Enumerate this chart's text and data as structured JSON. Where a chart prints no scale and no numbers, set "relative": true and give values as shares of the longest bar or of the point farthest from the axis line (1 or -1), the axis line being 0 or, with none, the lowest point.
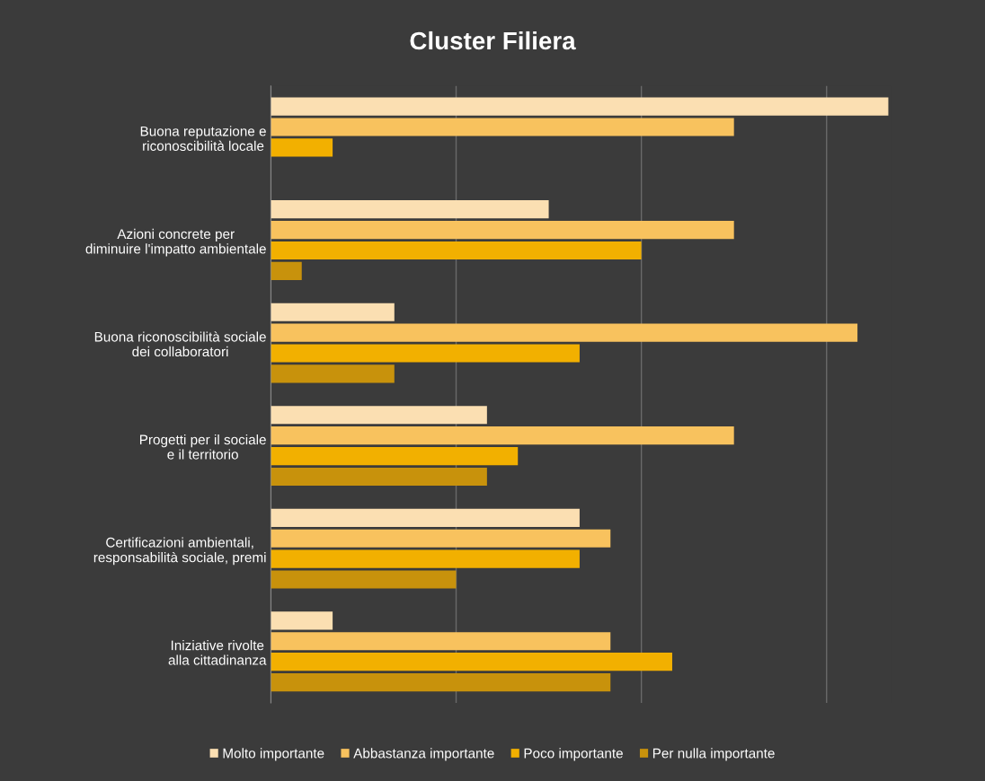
{
  "chart_data": {
    "type": "bar",
    "orientation": "horizontal",
    "relative": true,
    "title": "Cluster Filiera",
    "categories": [
      "Buona reputazione e\nriconoscibilità locale",
      "Azioni concrete per\ndiminuire l'impatto ambientale",
      "Buona riconoscibilità sociale\ndei collaboratori",
      "Progetti per il sociale\ne il territorio",
      "Certificazioni ambientali,\nresponsabilità sociale, premi",
      "Iniziative rivolte\nalla cittadinanza"
    ],
    "series": [
      {
        "name": "Molto importante",
        "color": "#fbdfb2",
        "values": [
          1.0,
          0.45,
          0.2,
          0.35,
          0.5,
          0.1
        ]
      },
      {
        "name": "Abbastanza importante",
        "color": "#f8c25e",
        "values": [
          0.75,
          0.75,
          0.95,
          0.75,
          0.55,
          0.55
        ]
      },
      {
        "name": "Poco importante",
        "color": "#f2b000",
        "values": [
          0.1,
          0.6,
          0.5,
          0.4,
          0.5,
          0.65
        ]
      },
      {
        "name": "Per nulla importante",
        "color": "#c8920c",
        "values": [
          0,
          0.05,
          0.2,
          0.35,
          0.3,
          0.55
        ]
      }
    ],
    "grid": "x",
    "legend": "bottom",
    "tick_labels": "y"
  }
}
